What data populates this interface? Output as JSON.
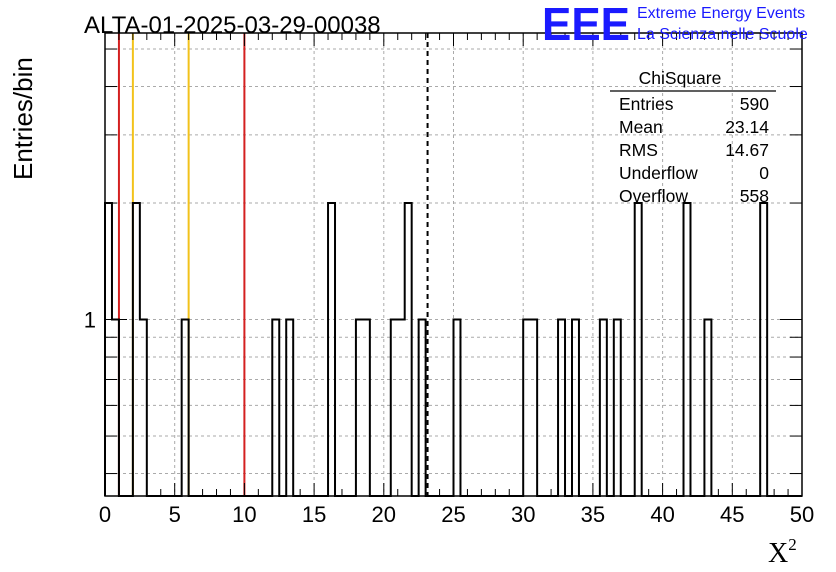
{
  "chart_data": {
    "type": "bar",
    "title": "ALTA-01-2025-03-29-00038",
    "xlabel": "X",
    "xlabel_sup": "2",
    "ylabel": "Entries/bin",
    "xlim": [
      0,
      50
    ],
    "ylim_log": [
      0.35,
      5.5
    ],
    "y_scale": "log",
    "grid": true,
    "bin_width": 0.5,
    "x_ticks": [
      "0",
      "5",
      "10",
      "15",
      "20",
      "25",
      "30",
      "35",
      "40",
      "45",
      "50"
    ],
    "y_ticks": [
      "1"
    ],
    "bins": [
      {
        "x": 0.0,
        "value": 2
      },
      {
        "x": 0.5,
        "value": 1
      },
      {
        "x": 2.0,
        "value": 2
      },
      {
        "x": 2.5,
        "value": 1
      },
      {
        "x": 5.5,
        "value": 1
      },
      {
        "x": 12.0,
        "value": 1
      },
      {
        "x": 13.0,
        "value": 1
      },
      {
        "x": 16.0,
        "value": 2
      },
      {
        "x": 18.0,
        "value": 1
      },
      {
        "x": 18.5,
        "value": 1
      },
      {
        "x": 20.5,
        "value": 1
      },
      {
        "x": 21.0,
        "value": 1
      },
      {
        "x": 21.5,
        "value": 2
      },
      {
        "x": 22.5,
        "value": 1
      },
      {
        "x": 25.0,
        "value": 1
      },
      {
        "x": 30.0,
        "value": 1
      },
      {
        "x": 30.5,
        "value": 1
      },
      {
        "x": 32.5,
        "value": 1
      },
      {
        "x": 33.5,
        "value": 1
      },
      {
        "x": 35.5,
        "value": 1
      },
      {
        "x": 36.5,
        "value": 1
      },
      {
        "x": 38.0,
        "value": 2
      },
      {
        "x": 41.5,
        "value": 2
      },
      {
        "x": 43.0,
        "value": 1
      },
      {
        "x": 47.0,
        "value": 2
      }
    ],
    "vertical_lines": [
      {
        "x": 1,
        "color": "#d42020",
        "style": "solid"
      },
      {
        "x": 2,
        "color": "#f2c21b",
        "style": "solid"
      },
      {
        "x": 6,
        "color": "#f2c21b",
        "style": "solid"
      },
      {
        "x": 10,
        "color": "#d42020",
        "style": "solid"
      },
      {
        "x": 23.14,
        "color": "#000000",
        "style": "dashed"
      }
    ],
    "stats_box": {
      "title": "ChiSquare",
      "rows": [
        {
          "label": "Entries",
          "value": "590"
        },
        {
          "label": "Mean",
          "value": "23.14"
        },
        {
          "label": "RMS",
          "value": "14.67"
        },
        {
          "label": "Underflow",
          "value": "0"
        },
        {
          "label": "Overflow",
          "value": "558"
        }
      ]
    }
  },
  "logo": {
    "mark": "EEE",
    "line1": "Extreme Energy Events",
    "line2": "La Scienza nelle Scuole",
    "color": "#1a1aff"
  }
}
